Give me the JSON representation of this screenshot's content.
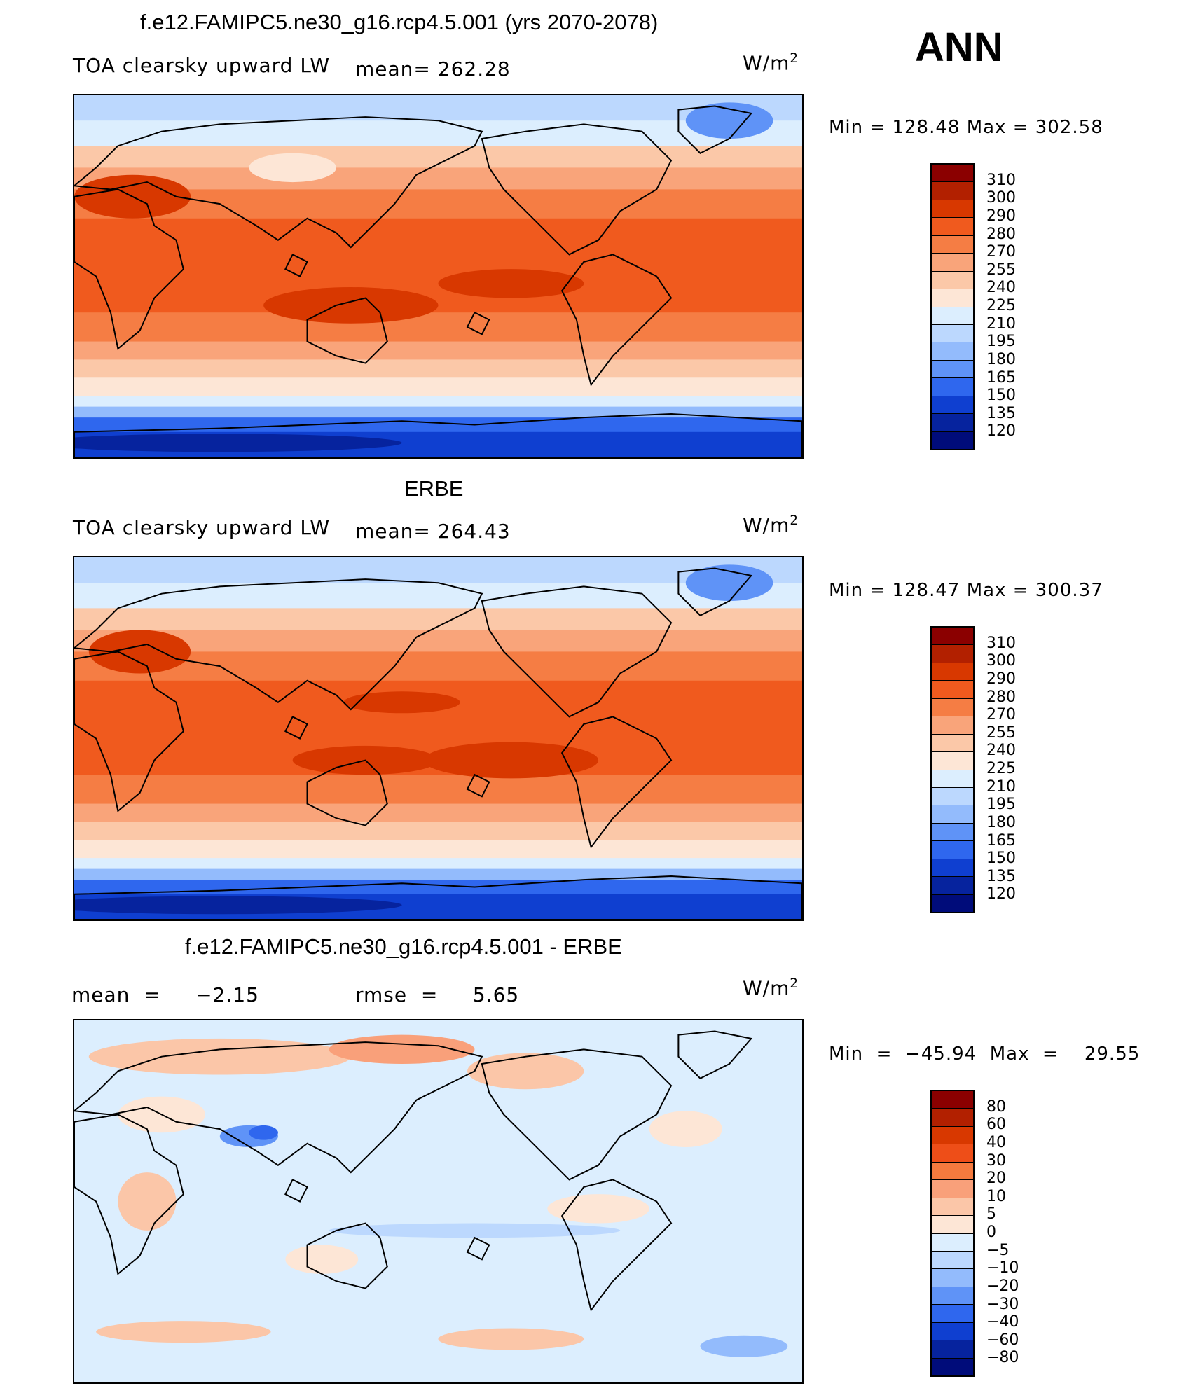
{
  "season": "ANN",
  "units_base": "W/m",
  "units_exp": "2",
  "panels": [
    {
      "title": "f.e12.FAMIPC5.ne30_g16.rcp4.5.001 (yrs 2070-2078)",
      "variable": "TOA clearsky upward LW",
      "stat": "mean=  262.28",
      "minmax": "Min  =  128.48  Max  =  302.58",
      "levels": [
        "310",
        "300",
        "290",
        "280",
        "270",
        "255",
        "240",
        "225",
        "210",
        "195",
        "180",
        "165",
        "150",
        "135",
        "120"
      ]
    },
    {
      "title": "ERBE",
      "variable": "TOA clearsky upward LW",
      "stat": "mean=  264.43",
      "minmax": "Min  =  128.47  Max  =  300.37",
      "levels": [
        "310",
        "300",
        "290",
        "280",
        "270",
        "255",
        "240",
        "225",
        "210",
        "195",
        "180",
        "165",
        "150",
        "135",
        "120"
      ]
    },
    {
      "title": "f.e12.FAMIPC5.ne30_g16.rcp4.5.001 - ERBE",
      "variable": "mean  =     −2.15",
      "stat": "rmse  =     5.65",
      "minmax": "Min  =  −45.94  Max  =    29.55",
      "levels": [
        "80",
        "60",
        "40",
        "30",
        "20",
        "10",
        "5",
        "0",
        "−5",
        "−10",
        "−20",
        "−30",
        "−40",
        "−60",
        "−80"
      ]
    }
  ],
  "colors": {
    "abs_scale": [
      "#8b0000",
      "#b22000",
      "#d83800",
      "#f05a1e",
      "#f57d44",
      "#f9a47a",
      "#fbc8a8",
      "#fde6d6",
      "#dceefe",
      "#bcd8fe",
      "#93bbfc",
      "#5f93f7",
      "#2f67ee",
      "#0f3fd0",
      "#06239e",
      "#000c7a"
    ],
    "diff_scale": [
      "#8b0000",
      "#b22000",
      "#d83800",
      "#ee4e18",
      "#f57a3e",
      "#f9a07a",
      "#fbc6a8",
      "#fde6d6",
      "#dceefe",
      "#bcd8fe",
      "#93bbfc",
      "#5f93f7",
      "#2f67ee",
      "#0f3fd0",
      "#06239e",
      "#000c7a"
    ]
  }
}
